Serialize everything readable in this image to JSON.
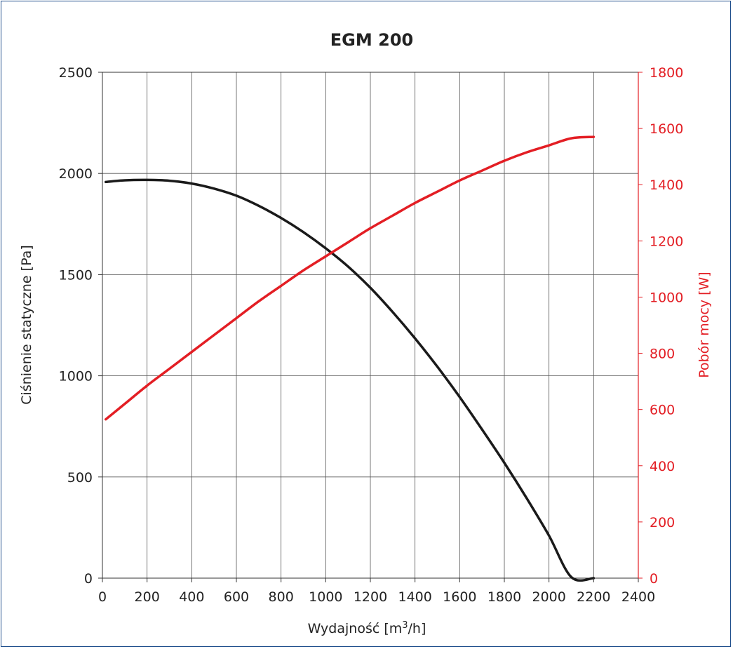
{
  "chart_data": {
    "type": "line",
    "title": "EGM 200",
    "xlabel_prefix": "Wydajność [m",
    "xlabel_sup": "3",
    "xlabel_suffix": "/h]",
    "ylabel": "Ciśnienie statyczne [Pa]",
    "y2label": "Pobór mocy [W]",
    "xlim": [
      0,
      2400
    ],
    "ylim": [
      0,
      2500
    ],
    "y2lim": [
      0,
      1800
    ],
    "x_ticks": [
      0,
      200,
      400,
      600,
      800,
      1000,
      1200,
      1400,
      1600,
      1800,
      2000,
      2200,
      2400
    ],
    "y_ticks": [
      0,
      500,
      1000,
      1500,
      2000,
      2500
    ],
    "y2_ticks": [
      0,
      200,
      400,
      600,
      800,
      1000,
      1200,
      1400,
      1600,
      1800
    ],
    "grid": true,
    "series": [
      {
        "axis": "left",
        "color": "#1a1a1a",
        "x": [
          15,
          100,
          200,
          300,
          400,
          500,
          600,
          700,
          800,
          900,
          1000,
          1100,
          1200,
          1300,
          1400,
          1500,
          1600,
          1700,
          1800,
          1900,
          2000,
          2100,
          2200
        ],
        "y": [
          1958,
          1966,
          1968,
          1964,
          1950,
          1925,
          1890,
          1840,
          1780,
          1710,
          1630,
          1540,
          1435,
          1315,
          1185,
          1045,
          895,
          735,
          570,
          395,
          210,
          5,
          0
        ]
      },
      {
        "axis": "right",
        "color": "#e31e24",
        "x": [
          15,
          100,
          200,
          300,
          400,
          500,
          600,
          700,
          800,
          900,
          1000,
          1100,
          1200,
          1300,
          1400,
          1500,
          1600,
          1700,
          1800,
          1900,
          2000,
          2100,
          2200
        ],
        "y": [
          565,
          620,
          685,
          745,
          805,
          865,
          925,
          985,
          1040,
          1095,
          1145,
          1195,
          1245,
          1290,
          1335,
          1375,
          1415,
          1450,
          1485,
          1515,
          1540,
          1565,
          1570
        ]
      }
    ]
  }
}
